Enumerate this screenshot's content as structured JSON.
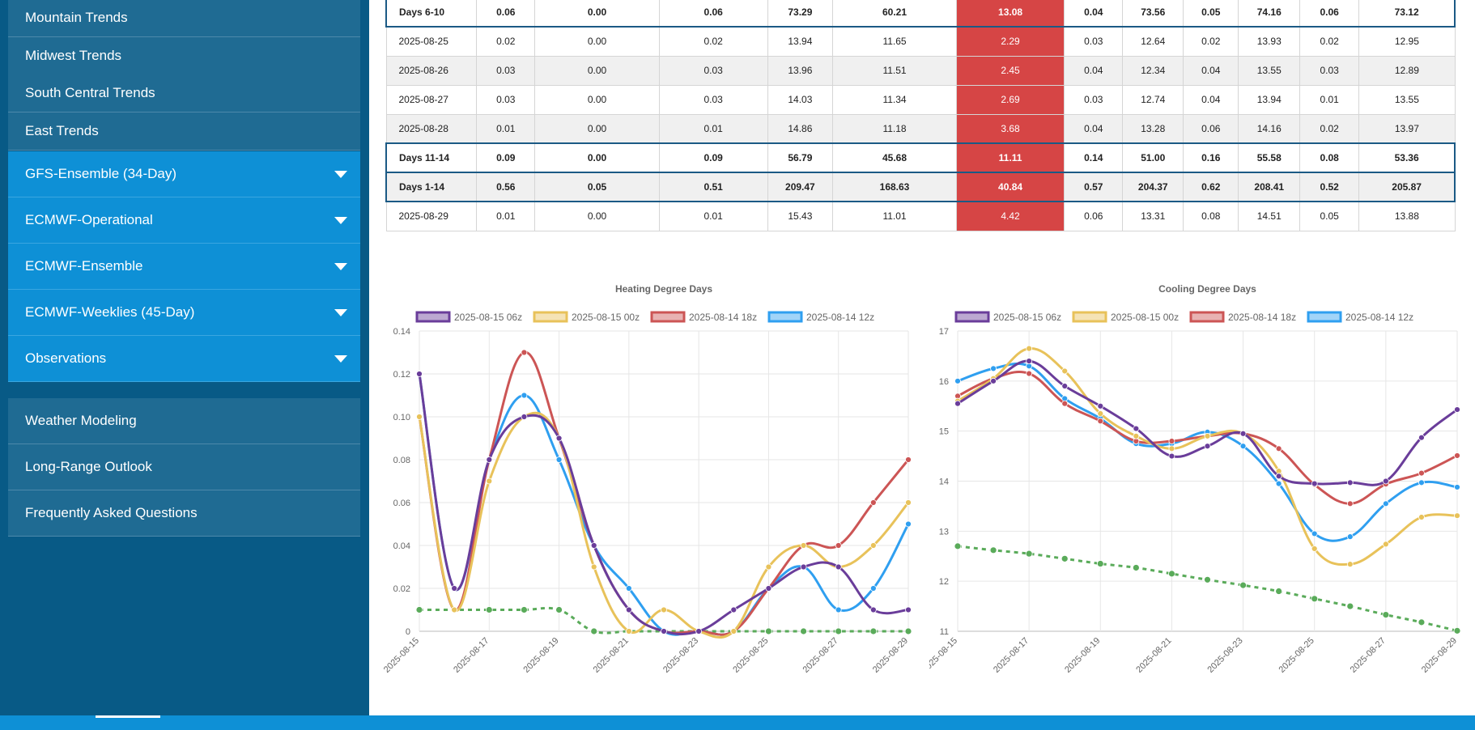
{
  "sidebar": {
    "trend_items": [
      "Mountain Trends",
      "Midwest Trends",
      "South Central Trends",
      "East Trends"
    ],
    "model_items": [
      "GFS-Ensemble (34-Day)",
      "ECMWF-Operational",
      "ECMWF-Ensemble",
      "ECMWF-Weeklies (45-Day)",
      "Observations"
    ],
    "bottom_items": [
      "Weather Modeling",
      "Long-Range Outlook",
      "Frequently Asked Questions"
    ]
  },
  "table": {
    "rows": [
      {
        "type": "summary",
        "cells": [
          "Days 6-10",
          "0.06",
          "0.00",
          "0.06",
          "73.29",
          "60.21",
          "13.08",
          "0.04",
          "73.56",
          "0.05",
          "74.16",
          "0.06",
          "73.12"
        ]
      },
      {
        "type": "day",
        "cells": [
          "2025-08-25",
          "0.02",
          "0.00",
          "0.02",
          "13.94",
          "11.65",
          "2.29",
          "0.03",
          "12.64",
          "0.02",
          "13.93",
          "0.02",
          "12.95"
        ]
      },
      {
        "type": "day",
        "cells": [
          "2025-08-26",
          "0.03",
          "0.00",
          "0.03",
          "13.96",
          "11.51",
          "2.45",
          "0.04",
          "12.34",
          "0.04",
          "13.55",
          "0.03",
          "12.89"
        ]
      },
      {
        "type": "day",
        "cells": [
          "2025-08-27",
          "0.03",
          "0.00",
          "0.03",
          "14.03",
          "11.34",
          "2.69",
          "0.03",
          "12.74",
          "0.04",
          "13.94",
          "0.01",
          "13.55"
        ]
      },
      {
        "type": "day",
        "cells": [
          "2025-08-28",
          "0.01",
          "0.00",
          "0.01",
          "14.86",
          "11.18",
          "3.68",
          "0.04",
          "13.28",
          "0.06",
          "14.16",
          "0.02",
          "13.97"
        ]
      },
      {
        "type": "summary",
        "cells": [
          "Days 11-14",
          "0.09",
          "0.00",
          "0.09",
          "56.79",
          "45.68",
          "11.11",
          "0.14",
          "51.00",
          "0.16",
          "55.58",
          "0.08",
          "53.36"
        ]
      },
      {
        "type": "summary",
        "cells": [
          "Days 1-14",
          "0.56",
          "0.05",
          "0.51",
          "209.47",
          "168.63",
          "40.84",
          "0.57",
          "204.37",
          "0.62",
          "208.41",
          "0.52",
          "205.87"
        ]
      },
      {
        "type": "day",
        "cells": [
          "2025-08-29",
          "0.01",
          "0.00",
          "0.01",
          "15.43",
          "11.01",
          "4.42",
          "0.06",
          "13.31",
          "0.08",
          "14.51",
          "0.05",
          "13.88"
        ]
      }
    ]
  },
  "colors": {
    "purple": "#6a3d9a",
    "yellow": "#e8c25a",
    "red": "#cc5555",
    "blue": "#2f9ff0",
    "green": "#5aab5a",
    "highlight": "#d64545"
  },
  "chart_data": [
    {
      "type": "line",
      "title": "Heating Degree Days",
      "x": [
        "2025-08-15",
        "2025-08-16",
        "2025-08-17",
        "2025-08-18",
        "2025-08-19",
        "2025-08-20",
        "2025-08-21",
        "2025-08-22",
        "2025-08-23",
        "2025-08-24",
        "2025-08-25",
        "2025-08-26",
        "2025-08-27",
        "2025-08-28",
        "2025-08-29"
      ],
      "tick_labels": [
        "2025-08-15",
        "2025-08-17",
        "2025-08-19",
        "2025-08-21",
        "2025-08-23",
        "2025-08-25",
        "2025-08-27",
        "2025-08-29"
      ],
      "ylim": [
        0,
        0.14
      ],
      "yticks": [
        "0",
        "0.02",
        "0.04",
        "0.06",
        "0.08",
        "0.10",
        "0.12",
        "0.14"
      ],
      "grid": true,
      "legend_placement": "top",
      "series": [
        {
          "name": "2025-08-15 06z",
          "color": "#6a3d9a",
          "values": [
            0.12,
            0.02,
            0.08,
            0.1,
            0.09,
            0.04,
            0.01,
            0.0,
            0.0,
            0.01,
            0.02,
            0.03,
            0.03,
            0.01,
            0.01
          ]
        },
        {
          "name": "2025-08-15 00z",
          "color": "#e8c25a",
          "values": [
            0.1,
            0.01,
            0.07,
            0.1,
            0.09,
            0.03,
            0.0,
            0.01,
            0.0,
            0.0,
            0.03,
            0.04,
            0.03,
            0.04,
            0.06
          ]
        },
        {
          "name": "2025-08-14 18z",
          "color": "#cc5555",
          "values": [
            0.1,
            0.01,
            0.08,
            0.13,
            0.09,
            0.04,
            0.01,
            0.0,
            0.0,
            0.0,
            0.02,
            0.04,
            0.04,
            0.06,
            0.08
          ]
        },
        {
          "name": "2025-08-14 12z",
          "color": "#2f9ff0",
          "values": [
            0.12,
            0.02,
            0.08,
            0.11,
            0.08,
            0.04,
            0.02,
            0.0,
            0.0,
            0.0,
            0.02,
            0.03,
            0.01,
            0.02,
            0.05
          ]
        },
        {
          "name": "",
          "color": "#5aab5a",
          "dashed": true,
          "values": [
            0.01,
            0.01,
            0.01,
            0.01,
            0.01,
            0.0,
            0.0,
            0.0,
            0.0,
            0.0,
            0.0,
            0.0,
            0.0,
            0.0,
            0.0
          ]
        }
      ]
    },
    {
      "type": "line",
      "title": "Cooling Degree Days",
      "x": [
        "2025-08-15",
        "2025-08-16",
        "2025-08-17",
        "2025-08-18",
        "2025-08-19",
        "2025-08-20",
        "2025-08-21",
        "2025-08-22",
        "2025-08-23",
        "2025-08-24",
        "2025-08-25",
        "2025-08-26",
        "2025-08-27",
        "2025-08-28",
        "2025-08-29"
      ],
      "tick_labels": [
        "2025-08-15",
        "2025-08-17",
        "2025-08-19",
        "2025-08-21",
        "2025-08-23",
        "2025-08-25",
        "2025-08-27",
        "2025-08-29"
      ],
      "ylim": [
        11,
        17
      ],
      "yticks": [
        "11",
        "12",
        "13",
        "14",
        "15",
        "16",
        "17"
      ],
      "grid": true,
      "legend_placement": "top",
      "series": [
        {
          "name": "2025-08-15 06z",
          "color": "#6a3d9a",
          "values": [
            15.55,
            16.0,
            16.4,
            15.9,
            15.5,
            15.05,
            14.5,
            14.7,
            14.95,
            14.1,
            13.95,
            13.97,
            14.0,
            14.87,
            15.43
          ]
        },
        {
          "name": "2025-08-15 00z",
          "color": "#e8c25a",
          "values": [
            15.6,
            16.05,
            16.65,
            16.2,
            15.35,
            14.9,
            14.65,
            14.9,
            14.95,
            14.2,
            12.65,
            12.34,
            12.74,
            13.28,
            13.31
          ]
        },
        {
          "name": "2025-08-14 18z",
          "color": "#cc5555",
          "values": [
            15.7,
            16.05,
            16.15,
            15.55,
            15.2,
            14.8,
            14.8,
            14.9,
            14.95,
            14.65,
            13.93,
            13.55,
            13.94,
            14.16,
            14.51
          ]
        },
        {
          "name": "2025-08-14 12z",
          "color": "#2f9ff0",
          "values": [
            16.0,
            16.25,
            16.3,
            15.65,
            15.25,
            14.75,
            14.75,
            14.98,
            14.7,
            13.95,
            12.95,
            12.89,
            13.55,
            13.97,
            13.88
          ]
        },
        {
          "name": "",
          "color": "#5aab5a",
          "dashed": true,
          "values": [
            12.7,
            12.62,
            12.55,
            12.45,
            12.35,
            12.27,
            12.15,
            12.03,
            11.92,
            11.8,
            11.65,
            11.5,
            11.33,
            11.18,
            11.01
          ]
        }
      ]
    }
  ]
}
